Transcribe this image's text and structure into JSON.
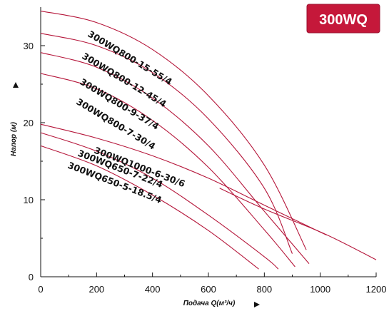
{
  "badge": {
    "text": "300WQ",
    "color": "#c5183a"
  },
  "chart_data": {
    "type": "line",
    "title": "",
    "xlabel": "Подача Q(м³/ч)",
    "ylabel": "Напор (м)",
    "xlim": [
      0,
      1200
    ],
    "ylim": [
      0,
      35
    ],
    "xticks": [
      0,
      200,
      400,
      600,
      800,
      1000,
      1200
    ],
    "yticks": [
      0,
      10,
      20,
      30
    ],
    "grid": false,
    "curve_color": "#b5163a",
    "series": [
      {
        "name": "300WQ800-15-55/4",
        "x": [
          0,
          200,
          400,
          600,
          800,
          950
        ],
        "y": [
          34.5,
          33.0,
          29.5,
          23.5,
          14.5,
          3.5
        ]
      },
      {
        "name": "300WQ800-12-45/4",
        "x": [
          0,
          200,
          400,
          600,
          800,
          900
        ],
        "y": [
          31.6,
          30.0,
          26.5,
          20.5,
          11.5,
          3.0
        ]
      },
      {
        "name": "300WQ800-9-37/4",
        "x": [
          0,
          200,
          400,
          600,
          800,
          960
        ],
        "y": [
          29.1,
          27.2,
          23.2,
          17.0,
          8.5,
          1.7
        ]
      },
      {
        "name": "300WQ800-7-30/4",
        "x": [
          0,
          200,
          400,
          600,
          800,
          910
        ],
        "y": [
          26.4,
          24.4,
          20.3,
          14.2,
          6.1,
          1.3
        ]
      },
      {
        "name": "300WQ1000-6-30/6",
        "x": [
          0,
          200,
          400,
          600,
          800,
          1000,
          1020
        ],
        "y": [
          19.8,
          18.0,
          15.7,
          12.8,
          9.3,
          5.8,
          5.5
        ]
      },
      {
        "name": "300WQ650-7-22/4",
        "x": [
          0,
          200,
          400,
          600,
          800,
          850
        ],
        "y": [
          18.7,
          16.3,
          12.8,
          8.0,
          2.6,
          1.0
        ]
      },
      {
        "name": "300WQ650-5-18.5/4",
        "x": [
          0,
          200,
          400,
          600,
          780
        ],
        "y": [
          17.0,
          14.4,
          10.6,
          6.0,
          1.0
        ]
      }
    ],
    "extra_lines": [
      {
        "x": [
          640,
          800,
          1020,
          1200
        ],
        "y": [
          11.5,
          8.8,
          5.5,
          2.2
        ]
      }
    ]
  }
}
